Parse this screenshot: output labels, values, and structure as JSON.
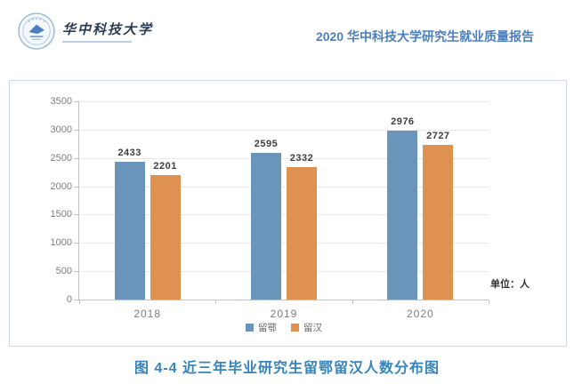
{
  "header": {
    "logo_text": "华中科技大学",
    "report_title": "2020 华中科技大学研究生就业质量报告"
  },
  "chart_data": {
    "type": "bar",
    "title": "",
    "xlabel": "",
    "ylabel": "",
    "categories": [
      "2018",
      "2019",
      "2020"
    ],
    "series": [
      {
        "name": "留鄂",
        "color": "#6b94ba",
        "values": [
          2433,
          2595,
          2976
        ]
      },
      {
        "name": "留汉",
        "color": "#df9152",
        "values": [
          2201,
          2332,
          2727
        ]
      }
    ],
    "ylim": [
      0,
      3500
    ],
    "ytick_step": 500,
    "grid": true,
    "legend_position": "bottom",
    "unit_label": "单位：人"
  },
  "caption": "图 4-4 近三年毕业研究生留鄂留汉人数分布图"
}
